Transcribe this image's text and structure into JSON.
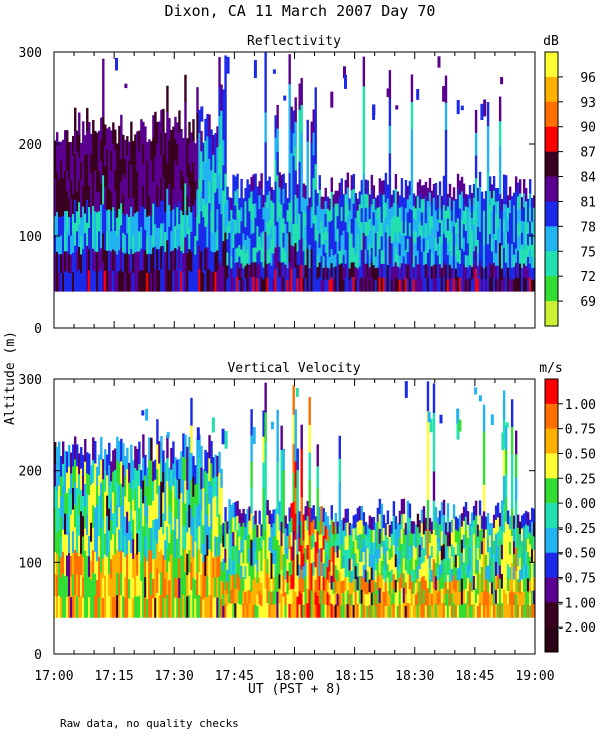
{
  "title": "Dixon, CA 11 March 2007  Day  70",
  "ylabel": "Altitude (m)",
  "xlabel": "UT  (PST + 8)",
  "footnote": "Raw data, no quality checks",
  "chart_data": [
    {
      "type": "heatmap",
      "title": "Reflectivity",
      "colorbar_unit": "dB",
      "x_ticks": [
        "17:00",
        "17:15",
        "17:30",
        "17:45",
        "18:00",
        "18:15",
        "18:30",
        "18:45",
        "19:00"
      ],
      "x_range_minutes": [
        0,
        120
      ],
      "y_ticks": [
        0,
        100,
        200,
        300
      ],
      "ylim": [
        0,
        300
      ],
      "colorbar_ticks": [
        "96",
        "93",
        "90",
        "87",
        "84",
        "81",
        "78",
        "75",
        "72",
        "69"
      ],
      "colorbar_colors": [
        "#ffff33",
        "#ffb000",
        "#ff7000",
        "#ff0000",
        "#3a0020",
        "#5a0090",
        "#1a2ae8",
        "#22b4f0",
        "#22e0b0",
        "#33dd33",
        "#ccf033"
      ]
    },
    {
      "type": "heatmap",
      "title": "Vertical Velocity",
      "colorbar_unit": "m/s",
      "x_ticks": [
        "17:00",
        "17:15",
        "17:30",
        "17:45",
        "18:00",
        "18:15",
        "18:30",
        "18:45",
        "19:00"
      ],
      "x_range_minutes": [
        0,
        120
      ],
      "y_ticks": [
        0,
        100,
        200,
        300
      ],
      "ylim": [
        0,
        300
      ],
      "colorbar_ticks": [
        "1.00",
        "0.75",
        "0.50",
        "0.25",
        "0.00",
        "-0.25",
        "-0.50",
        "-0.75",
        "-1.00",
        "-2.00"
      ],
      "colorbar_colors": [
        "#ff0000",
        "#ff7000",
        "#ffb000",
        "#ffff33",
        "#33dd33",
        "#22e0b0",
        "#22b4f0",
        "#1a2ae8",
        "#5a0090",
        "#3a0020",
        "#2a0015"
      ]
    }
  ]
}
